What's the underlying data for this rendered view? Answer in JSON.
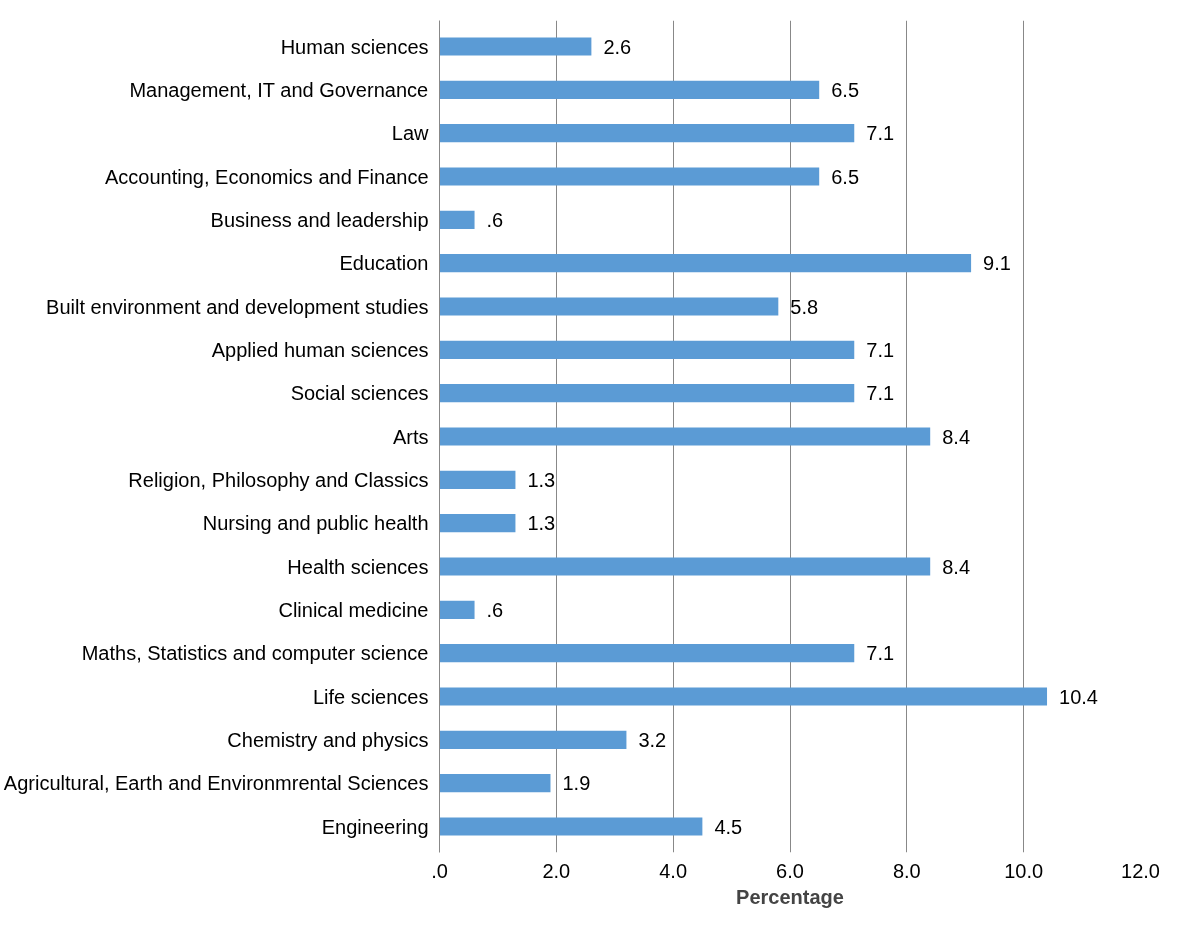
{
  "chart_data": {
    "type": "bar",
    "orientation": "horizontal",
    "xlabel": "Percentage",
    "categories": [
      "Human sciences",
      "Management, IT and Governance",
      "Law",
      "Accounting, Economics and Finance",
      "Business and leadership",
      "Education",
      "Built environment and development studies",
      "Applied human sciences",
      "Social sciences",
      "Arts",
      "Religion, Philosophy and Classics",
      "Nursing and public health",
      "Health sciences",
      "Clinical medicine",
      "Maths, Statistics and computer science",
      "Life sciences",
      "Chemistry and physics",
      "Agricultural, Earth and Environmrental Sciences",
      "Engineering"
    ],
    "values": [
      2.6,
      6.5,
      7.1,
      6.5,
      0.6,
      9.1,
      5.8,
      7.1,
      7.1,
      8.4,
      1.3,
      1.3,
      8.4,
      0.6,
      7.1,
      10.4,
      3.2,
      1.9,
      4.5
    ],
    "value_labels": [
      "2.6",
      "6.5",
      "7.1",
      "6.5",
      ".6",
      "9.1",
      "5.8",
      "7.1",
      "7.1",
      "8.4",
      "1.3",
      "1.3",
      "8.4",
      ".6",
      "7.1",
      "10.4",
      "3.2",
      "1.9",
      "4.5"
    ],
    "color": "#5b9bd5",
    "xlim": [
      0,
      12
    ],
    "xticks": [
      {
        "value": 0,
        "label": ".0"
      },
      {
        "value": 2,
        "label": "2.0"
      },
      {
        "value": 4,
        "label": "4.0"
      },
      {
        "value": 6,
        "label": "6.0"
      },
      {
        "value": 8,
        "label": "8.0"
      },
      {
        "value": 10,
        "label": "10.0"
      },
      {
        "value": 12,
        "label": "12.0"
      }
    ],
    "grid": "x"
  }
}
